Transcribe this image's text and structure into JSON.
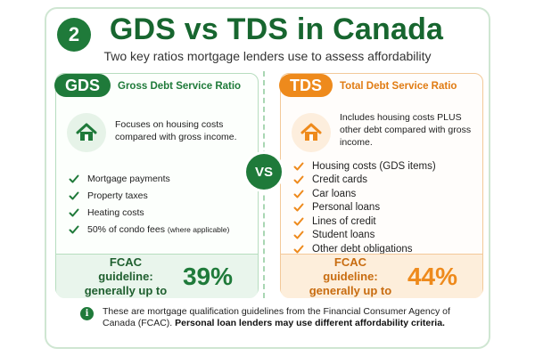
{
  "header": {
    "step": "2",
    "title": "GDS vs TDS in Canada",
    "subtitle": "Two key ratios mortgage lenders use to assess affordability"
  },
  "vs_label": "VS",
  "gds": {
    "abbr": "GDS",
    "name": "Gross Debt Service Ratio",
    "description": "Focuses on housing costs compared with gross income.",
    "items": [
      "Mortgage payments",
      "Property taxes",
      "Heating costs",
      "50% of condo fees"
    ],
    "item_note": "(where applicable)",
    "guideline_label": "FCAC guideline: generally up to",
    "guideline_value": "39%"
  },
  "tds": {
    "abbr": "TDS",
    "name": "Total Debt Service Ratio",
    "description": "Includes housing costs PLUS other debt compared with gross income.",
    "items": [
      "Housing costs (GDS items)",
      "Credit cards",
      "Car loans",
      "Personal loans",
      "Lines of credit",
      "Student loans",
      "Other debt obligations"
    ],
    "guideline_label": "FCAC guideline: generally up to",
    "guideline_value": "44%"
  },
  "footer": {
    "info_icon": "i",
    "text": "These are mortgage qualification guidelines from the Financial Consumer Agency of Canada (FCAC).",
    "bold_text": "Personal loan lenders may use different affordability criteria."
  },
  "icons": {
    "house": "house-icon",
    "check": "check-icon",
    "info": "info-icon"
  },
  "colors": {
    "green": "#1f7a3a",
    "orange": "#ee8a1c"
  }
}
